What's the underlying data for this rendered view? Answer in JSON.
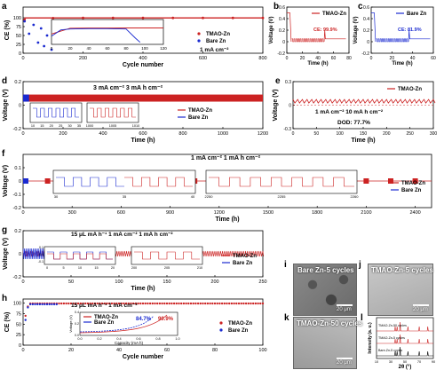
{
  "colors": {
    "red": "#cc2222",
    "blue": "#1a2ad0",
    "axis": "#000000",
    "photo_light": "#bdbdbd",
    "photo_dark": "#7e7e7e"
  },
  "chart_data": [
    {
      "panel": "a",
      "type": "scatter",
      "ylabel": "CE (%)",
      "xlabel": "Cycle number",
      "xlim": [
        0,
        800
      ],
      "ylim": [
        0,
        130
      ],
      "xticks": [
        0,
        200,
        400,
        600,
        800
      ],
      "yticks": [
        0,
        25,
        50,
        75,
        100
      ],
      "annotation": "1 mA cm⁻²",
      "series": [
        {
          "name": "TMAO-Zn",
          "x": [
            5,
            100,
            200,
            300,
            400,
            500,
            600,
            700,
            800
          ],
          "y": [
            95,
            99,
            99.5,
            99.5,
            99.5,
            99.5,
            99.5,
            99.5,
            99.5
          ]
        },
        {
          "name": "Bare Zn",
          "x": [
            5,
            20,
            35,
            50,
            60,
            70,
            80,
            95
          ],
          "y": [
            90,
            55,
            80,
            30,
            70,
            20,
            50,
            10
          ]
        }
      ],
      "inset": {
        "xlim": [
          0,
          120
        ],
        "ylim": [
          60,
          120
        ],
        "xticks": [
          0,
          20,
          40,
          60,
          80,
          100,
          120
        ],
        "series": [
          {
            "name": "TMAO-Zn",
            "x": [
              0,
              20,
              40,
              60,
              80,
              100,
              120
            ],
            "y": [
              85,
              99,
              99.5,
              99.5,
              99.6,
              99.6,
              99.6
            ]
          },
          {
            "name": "Bare Zn",
            "x": [
              0,
              10,
              20,
              40,
              60,
              80,
              90,
              95
            ],
            "y": [
              80,
              95,
              97,
              98,
              98,
              97,
              75,
              65
            ]
          }
        ]
      }
    },
    {
      "panel": "b",
      "type": "line",
      "ylabel": "Voltage (V)",
      "xlabel": "Time (h)",
      "xlim": [
        0,
        80
      ],
      "ylim": [
        -0.2,
        0.6
      ],
      "xticks": [
        0,
        20,
        40,
        60,
        80
      ],
      "yticks": [
        -0.2,
        0.0,
        0.2,
        0.4,
        0.6
      ],
      "legend": "TMAO-Zn",
      "annotation": "CE: 99.9%"
    },
    {
      "panel": "c",
      "type": "line",
      "ylabel": "Voltage (V)",
      "xlabel": "Time (h)",
      "xlim": [
        0,
        60
      ],
      "ylim": [
        -0.2,
        0.6
      ],
      "xticks": [
        0,
        20,
        40,
        60
      ],
      "yticks": [
        -0.2,
        0.0,
        0.2,
        0.4,
        0.6
      ],
      "legend": "Bare Zn",
      "annotation": "CE: 81.9%"
    },
    {
      "panel": "d",
      "type": "line",
      "ylabel": "Voltage (V)",
      "xlabel": "Time (h)",
      "xlim": [
        0,
        1200
      ],
      "ylim": [
        -0.2,
        0.2
      ],
      "xticks": [
        0,
        200,
        400,
        600,
        800,
        1000,
        1200
      ],
      "yticks": [
        -0.2,
        0.0,
        0.2
      ],
      "annotation": "3 mA cm⁻²   3 mA h cm⁻²",
      "series": [
        {
          "name": "TMAO-Zn",
          "x": [
            0,
            1200
          ],
          "y": [
            0.06,
            0.06
          ]
        },
        {
          "name": "Bare Zn",
          "x": [
            0,
            30
          ],
          "y": [
            0.06,
            0.06
          ]
        }
      ],
      "insets": [
        {
          "xticks": [
            10,
            15,
            20,
            25,
            30,
            35
          ]
        },
        {
          "xticks": [
            1000,
            1005,
            1010
          ]
        }
      ]
    },
    {
      "panel": "e",
      "type": "line",
      "ylabel": "Voltage (V)",
      "xlabel": "Time (h)",
      "xlim": [
        0,
        300
      ],
      "ylim": [
        -0.3,
        0.3
      ],
      "xticks": [
        0,
        50,
        100,
        150,
        200,
        250,
        300
      ],
      "yticks": [
        -0.3,
        0.0,
        0.3
      ],
      "legend": "TMAO-Zn",
      "annotation": "1 mA cm⁻²   10 mA h cm⁻²",
      "annotation2": "DOD: 77.7%"
    },
    {
      "panel": "f",
      "type": "line",
      "ylabel": "Voltage (V)",
      "xlabel": "Time (h)",
      "xlim": [
        0,
        2500
      ],
      "ylim": [
        -0.2,
        0.2
      ],
      "xticks": [
        0,
        300,
        600,
        900,
        1200,
        1500,
        1800,
        2100,
        2400
      ],
      "yticks": [
        -0.2,
        -0.1,
        0.0,
        0.1
      ],
      "annotation": "1 mA cm⁻²   1 mA h cm⁻²",
      "series": [
        {
          "name": "TMAO-Zn",
          "x": [
            0,
            2500
          ],
          "y": [
            0.0,
            0.0
          ]
        },
        {
          "name": "Bare Zn",
          "x": [
            0,
            60
          ],
          "y": [
            0.0,
            0.0
          ]
        }
      ],
      "insets": [
        {
          "xticks": [
            30,
            35,
            40
          ]
        },
        {
          "xticks": [
            2250,
            2255,
            2260
          ]
        }
      ]
    },
    {
      "panel": "g",
      "type": "line",
      "ylabel": "Voltage (V)",
      "xlabel": "Time (h)",
      "xlim": [
        0,
        250
      ],
      "ylim": [
        -0.2,
        0.2
      ],
      "xticks": [
        0,
        50,
        100,
        150,
        200,
        250
      ],
      "yticks": [
        -0.2,
        0.0,
        0.2
      ],
      "annotation": "15 μL mA h⁻¹   1 mA cm⁻²   1 mA h cm⁻²",
      "series": [
        {
          "name": "TMAO-Zn",
          "x": [
            0,
            250
          ],
          "y": [
            0.0,
            0.0
          ]
        },
        {
          "name": "Bare Zn",
          "x": [
            0,
            25
          ],
          "y": [
            0.0,
            0.0
          ]
        }
      ],
      "insets": [
        {
          "xticks": [
            0,
            5,
            10,
            15,
            20
          ],
          "yticks": [
            -0.1,
            0.0,
            0.1
          ]
        },
        {
          "xticks": [
            200,
            205,
            210
          ]
        }
      ]
    },
    {
      "panel": "h",
      "type": "scatter",
      "ylabel": "CE (%)",
      "xlabel": "Cycle number",
      "xlim": [
        0,
        100
      ],
      "ylim": [
        0,
        110
      ],
      "xticks": [
        0,
        20,
        40,
        60,
        80,
        100
      ],
      "yticks": [
        0,
        25,
        50,
        75,
        100
      ],
      "annotation": "15 μL mA h⁻¹   1 mA cm⁻²",
      "series": [
        {
          "name": "TMAO-Zn",
          "x": [
            1,
            2,
            5,
            20,
            40,
            60,
            80,
            100
          ],
          "y": [
            70,
            92,
            98,
            99,
            99.3,
            99.4,
            99.5,
            99.5
          ]
        },
        {
          "name": "Bare Zn",
          "x": [
            1,
            2,
            5,
            10,
            14
          ],
          "y": [
            60,
            90,
            97,
            98,
            97
          ]
        }
      ],
      "inset": {
        "xlabel": "Capacity (mA h)",
        "ylabel": "Voltage (V)",
        "xticks": [
          0.0,
          0.2,
          0.4,
          0.6,
          0.8,
          1.0
        ],
        "yticks": [
          0.0,
          0.2,
          0.4
        ],
        "annotations": [
          {
            "text": "84.7%",
            "series": "Bare Zn"
          },
          {
            "text": "90.9%",
            "series": "TMAO-Zn"
          }
        ]
      }
    },
    {
      "panel": "l",
      "type": "line",
      "ylabel": "Intensity (a. u.)",
      "xlabel": "2θ (°)",
      "xlim": [
        10,
        90
      ],
      "xticks": [
        10,
        20,
        30,
        40,
        50,
        60,
        70,
        80,
        90
      ],
      "series": [
        {
          "name": "TMAO-Zn-50 cycles",
          "peaks": [
            36.3,
            39.0,
            43.2,
            54.3,
            70.1,
            82.1
          ],
          "offset": 2
        },
        {
          "name": "TMAO-Zn-5 cycles",
          "peaks": [
            36.3,
            39.0,
            43.2,
            54.3,
            70.1,
            82.1
          ],
          "offset": 1
        },
        {
          "name": "Bare-Zn-5 cycles",
          "peaks": [
            36.3,
            39.0,
            43.2,
            54.3,
            70.1,
            82.1
          ],
          "offset": 0
        }
      ]
    }
  ],
  "images": {
    "i": {
      "panel": "i",
      "label": "Bare Zn-5 cycles",
      "scale": "20 μm"
    },
    "j": {
      "panel": "j",
      "label": "TMAO-Zn-5 cycles",
      "scale": "20 μm"
    },
    "k": {
      "panel": "k",
      "label": "TMAO-Zn-50 cycles",
      "scale": "20 μm"
    }
  }
}
